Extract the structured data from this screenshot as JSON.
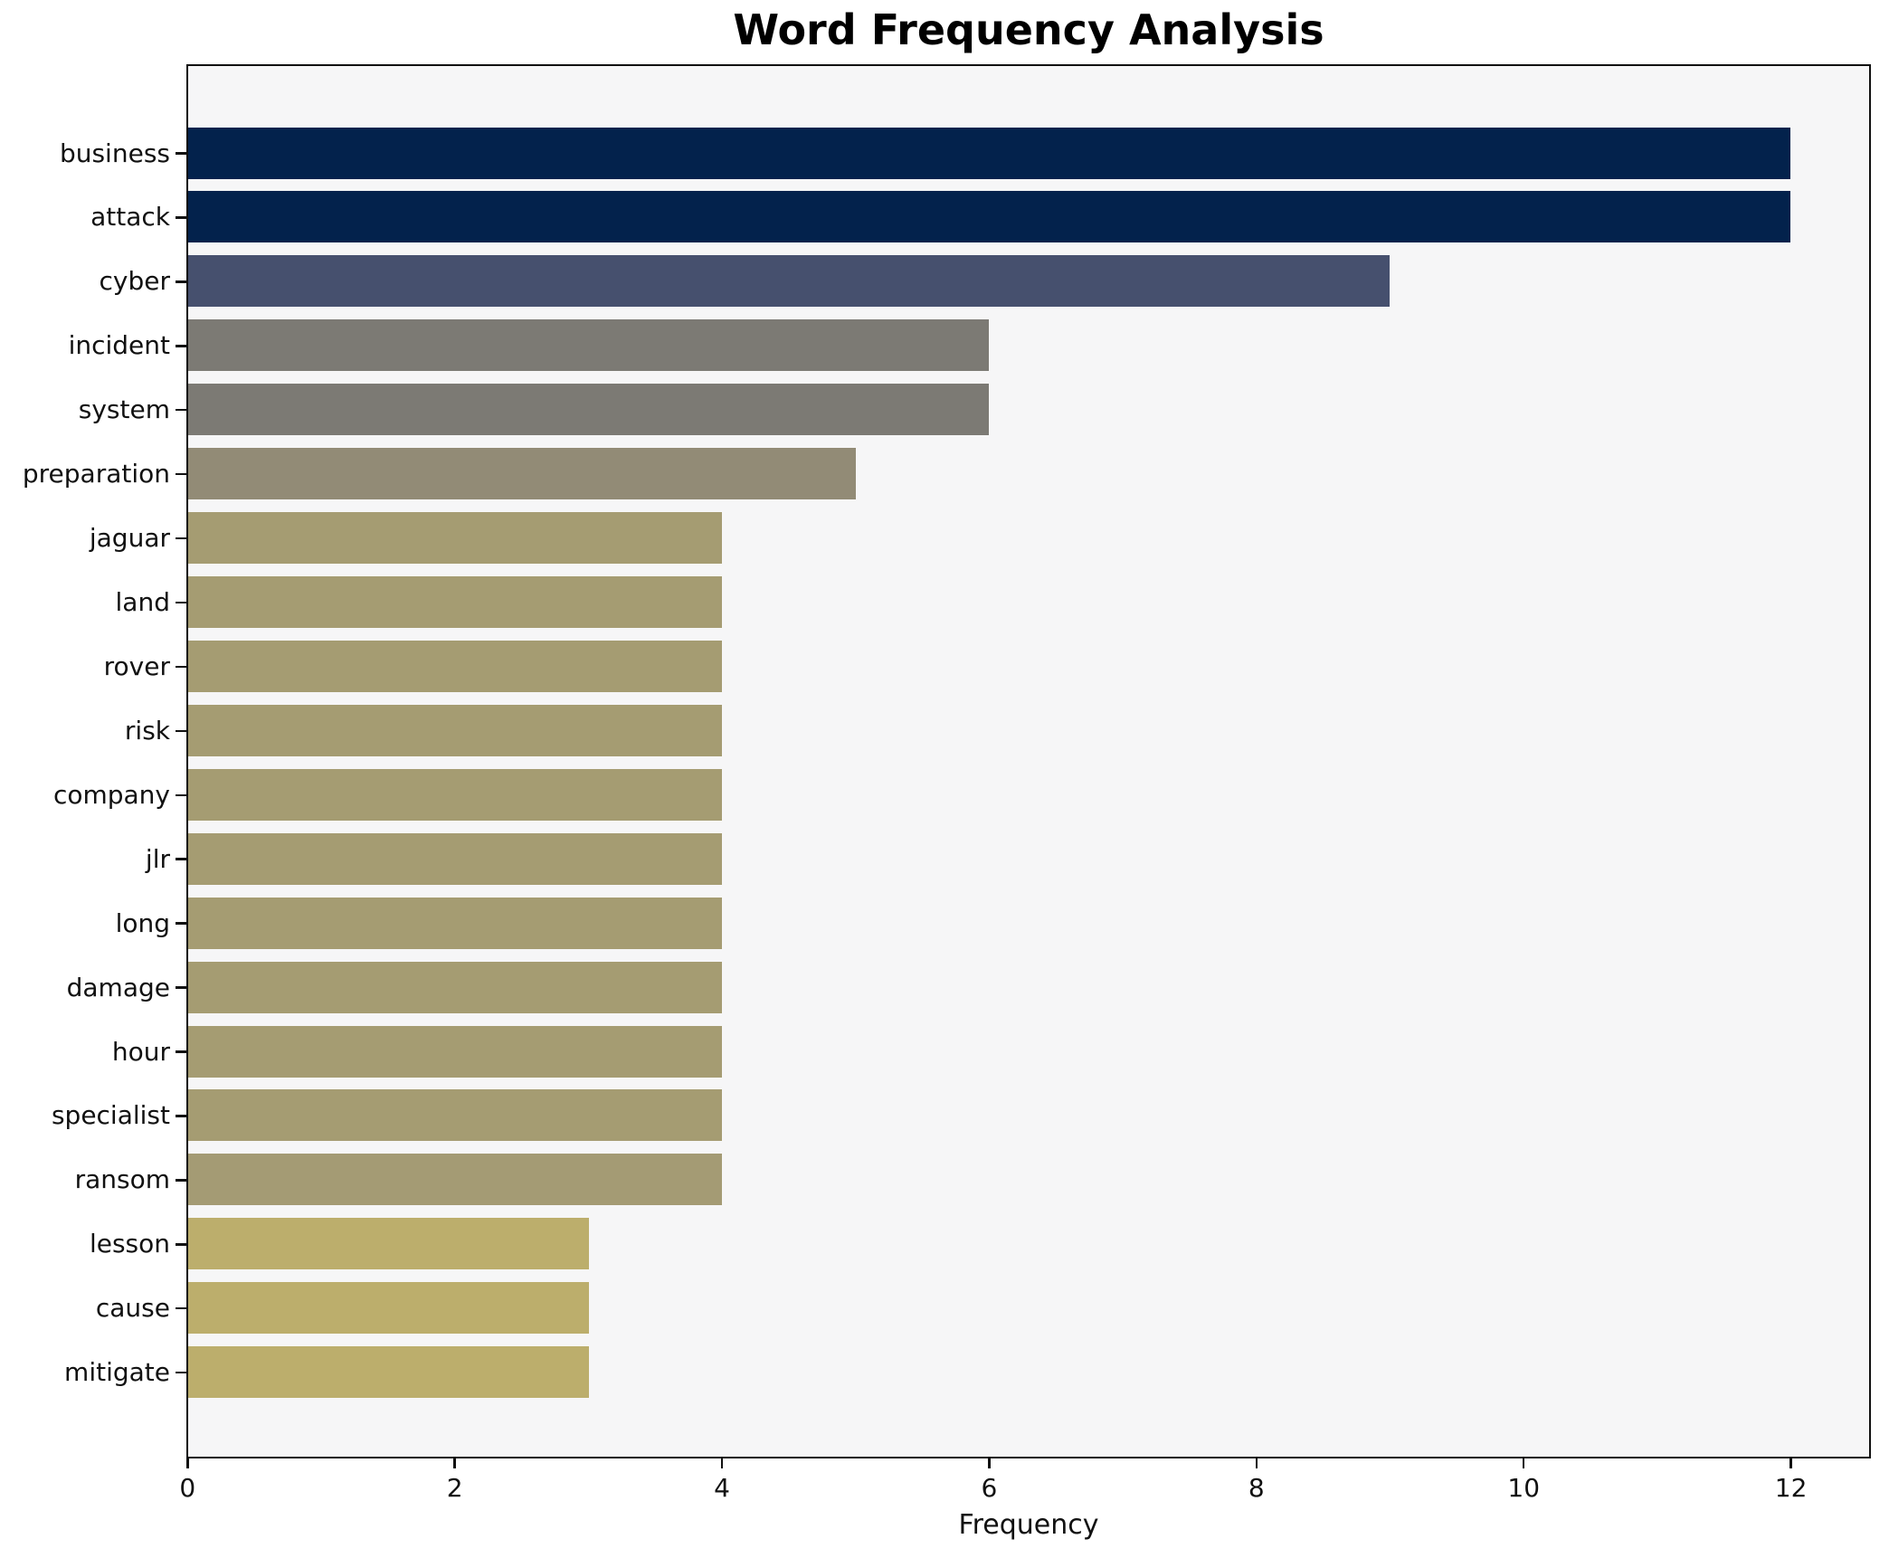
{
  "page": {
    "figure_background": "#ffffff",
    "plot_background": "#f6f6f7",
    "axis_color": "#111111",
    "text_color": "#111111"
  },
  "chart_data": {
    "type": "bar",
    "orientation": "horizontal",
    "title": "Word Frequency Analysis",
    "xlabel": "Frequency",
    "ylabel": "",
    "xlim": [
      0,
      12.59
    ],
    "xticks": [
      0,
      2,
      4,
      6,
      8,
      10,
      12
    ],
    "grid": false,
    "legend_position": "none",
    "categories": [
      "business",
      "attack",
      "cyber",
      "incident",
      "system",
      "preparation",
      "jaguar",
      "land",
      "rover",
      "risk",
      "company",
      "jlr",
      "long",
      "damage",
      "hour",
      "specialist",
      "ransom",
      "lesson",
      "cause",
      "mitigate"
    ],
    "values": [
      12,
      12,
      9,
      6,
      6,
      5,
      4,
      4,
      4,
      4,
      4,
      4,
      4,
      4,
      4,
      4,
      4,
      3,
      3,
      3
    ],
    "bar_colors": [
      "#03224c",
      "#03224c",
      "#46506e",
      "#7c7a74",
      "#7c7a74",
      "#928b76",
      "#a59c72",
      "#a59c72",
      "#a59c72",
      "#a59c72",
      "#a59c72",
      "#a59c72",
      "#a59c72",
      "#a59c72",
      "#a59c72",
      "#a59c72",
      "#a49b74",
      "#bcae6c",
      "#bcae6c",
      "#bcae6c"
    ]
  }
}
